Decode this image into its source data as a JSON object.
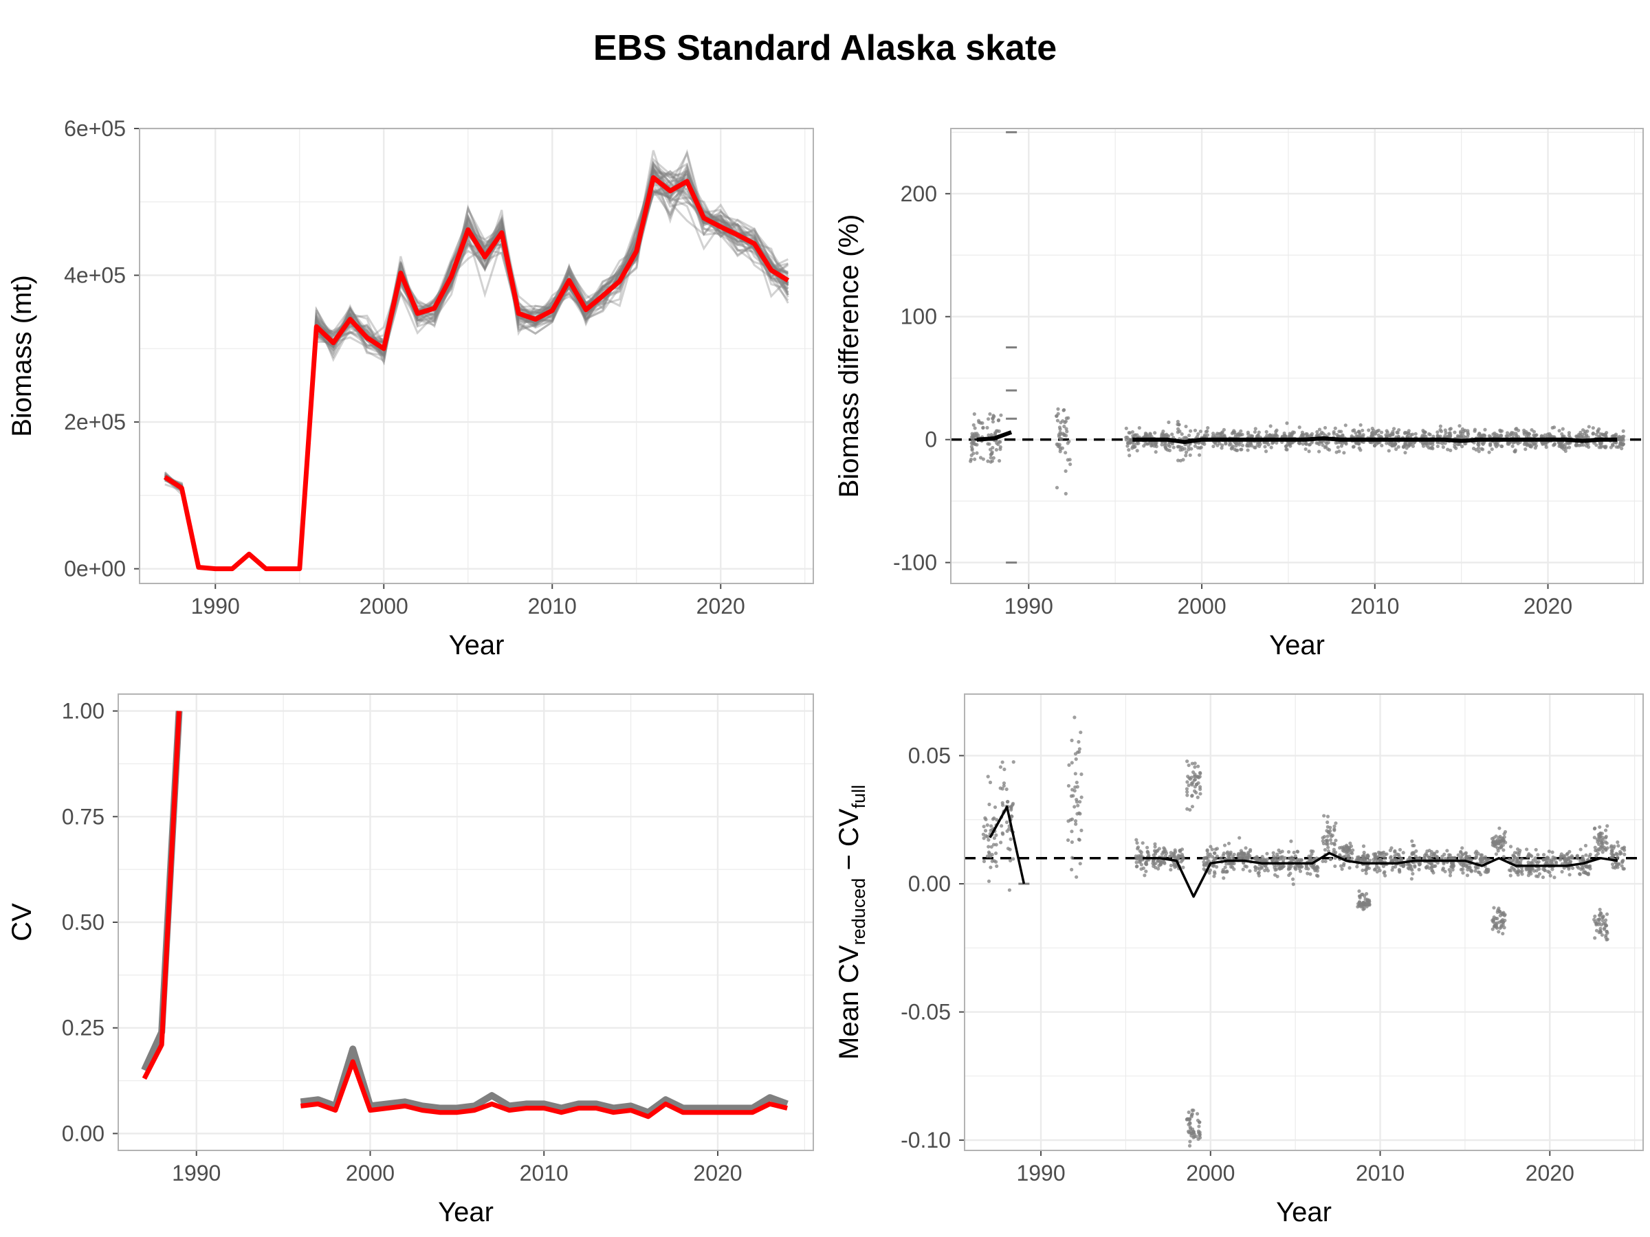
{
  "title": "EBS Standard Alaska skate",
  "colors": {
    "highlight": "#ff0000",
    "replicate": "#7f7f7f",
    "mean": "#000000",
    "grid": "#ebebeb",
    "panel_border": "#b3b3b3"
  },
  "chart_data": [
    {
      "type": "line",
      "xlabel": "Year",
      "ylabel": "Biomass (mt)",
      "xlim": [
        1985.5,
        2025.5
      ],
      "ylim": [
        -20000,
        600000
      ],
      "xticks": [
        1990,
        2000,
        2010,
        2020
      ],
      "xtick_labels": [
        "1990",
        "2000",
        "2010",
        "2020"
      ],
      "yticks": [
        0,
        200000,
        400000,
        600000
      ],
      "ytick_labels": [
        "0e+00",
        "2e+05",
        "4e+05",
        "6e+05"
      ],
      "grid": true,
      "series": [
        {
          "role": "full",
          "segments": [
            {
              "x": [
                1987,
                1988,
                1989,
                1990,
                1991,
                1992,
                1993,
                1994,
                1995,
                1996,
                1997,
                1998,
                1999,
                2000,
                2001,
                2002,
                2003,
                2004,
                2005,
                2006,
                2007,
                2008,
                2009,
                2010,
                2011,
                2012,
                2013,
                2014,
                2015,
                2016,
                2017,
                2018,
                2019,
                2020,
                2021,
                2022,
                2023,
                2024
              ],
              "y": [
                125000,
                110000,
                2000,
                0,
                0,
                20000,
                0,
                0,
                0,
                330000,
                308000,
                340000,
                315000,
                300000,
                403000,
                348000,
                355000,
                398000,
                462000,
                425000,
                458000,
                348000,
                340000,
                352000,
                393000,
                353000,
                372000,
                392000,
                433000,
                533000,
                515000,
                528000,
                478000,
                466000,
                455000,
                443000,
                407000,
                393000
              ]
            }
          ]
        }
      ],
      "replicate_band": {
        "x_range": [
          1987,
          2024
        ],
        "y_spread_fraction": 0.06
      }
    },
    {
      "type": "scatter",
      "xlabel": "Year",
      "ylabel": "Biomass difference (%)",
      "xlim": [
        1985.5,
        2025.5
      ],
      "ylim": [
        -117,
        253
      ],
      "xticks": [
        1990,
        2000,
        2010,
        2020
      ],
      "xtick_labels": [
        "1990",
        "2000",
        "2010",
        "2020"
      ],
      "yticks": [
        -100,
        0,
        100,
        200
      ],
      "ytick_labels": [
        "-100",
        "0",
        "100",
        "200"
      ],
      "grid": true,
      "reference_line": 0,
      "point_groups": [
        {
          "x": 1987,
          "center": 0,
          "spread": 22
        },
        {
          "x": 1988,
          "center": 0,
          "spread": 30
        },
        {
          "x": 1992,
          "center": 0,
          "spread": 45
        },
        {
          "x": 1996,
          "center": 0,
          "spread": 10
        },
        {
          "x": 1997,
          "center": 0,
          "spread": 10
        },
        {
          "x": 1998,
          "center": 0,
          "spread": 10
        },
        {
          "x": 1999,
          "center": -2,
          "spread": 22
        },
        {
          "x": 2000,
          "center": 0,
          "spread": 10
        },
        {
          "x": 2001,
          "center": 0,
          "spread": 10
        },
        {
          "x": 2002,
          "center": 0,
          "spread": 10
        },
        {
          "x": 2003,
          "center": 0,
          "spread": 10
        },
        {
          "x": 2004,
          "center": 0,
          "spread": 10
        },
        {
          "x": 2005,
          "center": 0,
          "spread": 10
        },
        {
          "x": 2006,
          "center": 0,
          "spread": 10
        },
        {
          "x": 2007,
          "center": 0,
          "spread": 10
        },
        {
          "x": 2008,
          "center": 0,
          "spread": 10
        },
        {
          "x": 2009,
          "center": 0,
          "spread": 10
        },
        {
          "x": 2010,
          "center": 0,
          "spread": 10
        },
        {
          "x": 2011,
          "center": 0,
          "spread": 10
        },
        {
          "x": 2012,
          "center": 0,
          "spread": 10
        },
        {
          "x": 2013,
          "center": 0,
          "spread": 10
        },
        {
          "x": 2014,
          "center": 0,
          "spread": 10
        },
        {
          "x": 2015,
          "center": 0,
          "spread": 10
        },
        {
          "x": 2016,
          "center": 0,
          "spread": 10
        },
        {
          "x": 2017,
          "center": 0,
          "spread": 10
        },
        {
          "x": 2018,
          "center": 0,
          "spread": 10
        },
        {
          "x": 2019,
          "center": 0,
          "spread": 10
        },
        {
          "x": 2020,
          "center": 0,
          "spread": 10
        },
        {
          "x": 2021,
          "center": 0,
          "spread": 10
        },
        {
          "x": 2022,
          "center": 0,
          "spread": 10
        },
        {
          "x": 2023,
          "center": 0,
          "spread": 10
        },
        {
          "x": 2024,
          "center": 0,
          "spread": 10
        }
      ],
      "discrete_points": [
        {
          "x": 1989,
          "y": 250
        },
        {
          "x": 1989,
          "y": 75
        },
        {
          "x": 1989,
          "y": 40
        },
        {
          "x": 1989,
          "y": 17
        },
        {
          "x": 1989,
          "y": -100
        }
      ],
      "mean_segments": [
        {
          "x": [
            1987,
            1988,
            1989
          ],
          "y": [
            0,
            1,
            6
          ]
        },
        {
          "x": [
            1996,
            1997,
            1998,
            1999,
            2000,
            2001,
            2002,
            2003,
            2004,
            2005,
            2006,
            2007,
            2008,
            2009,
            2010,
            2011,
            2012,
            2013,
            2014,
            2015,
            2016,
            2017,
            2018,
            2019,
            2020,
            2021,
            2022,
            2023,
            2024
          ],
          "y": [
            0,
            0,
            0,
            -2,
            0,
            0,
            0,
            0,
            0,
            0,
            0,
            1,
            0,
            0,
            0,
            0,
            0,
            0,
            0,
            -1,
            0,
            0,
            0,
            0,
            0,
            0,
            -1,
            0,
            0
          ]
        }
      ]
    },
    {
      "type": "line",
      "xlabel": "Year",
      "ylabel": "CV",
      "xlim": [
        1985.5,
        2025.5
      ],
      "ylim": [
        -0.04,
        1.04
      ],
      "xticks": [
        1990,
        2000,
        2010,
        2020
      ],
      "xtick_labels": [
        "1990",
        "2000",
        "2010",
        "2020"
      ],
      "yticks": [
        0,
        0.25,
        0.5,
        0.75,
        1.0
      ],
      "ytick_labels": [
        "0.00",
        "0.25",
        "0.50",
        "0.75",
        "1.00"
      ],
      "grid": true,
      "series": [
        {
          "role": "full",
          "segments": [
            {
              "x": [
                1987,
                1988,
                1989
              ],
              "y": [
                0.13,
                0.21,
                1.0
              ]
            },
            {
              "x": [
                1996,
                1997,
                1998,
                1999,
                2000,
                2001,
                2002,
                2003,
                2004,
                2005,
                2006,
                2007,
                2008,
                2009,
                2010,
                2011,
                2012,
                2013,
                2014,
                2015,
                2016,
                2017,
                2018,
                2019,
                2020,
                2021,
                2022,
                2023,
                2024
              ],
              "y": [
                0.065,
                0.07,
                0.055,
                0.17,
                0.055,
                0.06,
                0.065,
                0.055,
                0.05,
                0.05,
                0.055,
                0.07,
                0.055,
                0.06,
                0.06,
                0.05,
                0.06,
                0.06,
                0.05,
                0.055,
                0.04,
                0.07,
                0.05,
                0.05,
                0.05,
                0.05,
                0.05,
                0.07,
                0.06
              ]
            }
          ]
        },
        {
          "role": "reduced",
          "segments": [
            {
              "x": [
                1987,
                1988,
                1989
              ],
              "y": [
                0.15,
                0.24,
                1.0
              ]
            },
            {
              "x": [
                1996,
                1997,
                1998,
                1999,
                2000,
                2001,
                2002,
                2003,
                2004,
                2005,
                2006,
                2007,
                2008,
                2009,
                2010,
                2011,
                2012,
                2013,
                2014,
                2015,
                2016,
                2017,
                2018,
                2019,
                2020,
                2021,
                2022,
                2023,
                2024
              ],
              "y": [
                0.075,
                0.08,
                0.065,
                0.2,
                0.065,
                0.07,
                0.075,
                0.065,
                0.06,
                0.06,
                0.065,
                0.09,
                0.065,
                0.07,
                0.07,
                0.06,
                0.07,
                0.07,
                0.06,
                0.065,
                0.05,
                0.08,
                0.06,
                0.06,
                0.06,
                0.06,
                0.06,
                0.085,
                0.07
              ]
            }
          ]
        }
      ]
    },
    {
      "type": "scatter",
      "xlabel": "Year",
      "ylabel": "Mean CVreduced − CVfull",
      "ylabel_parts": {
        "pre": "Mean CV",
        "sub1": "reduced",
        "mid": " − CV",
        "sub2": "full"
      },
      "xlim": [
        1985.5,
        2025.5
      ],
      "ylim": [
        -0.104,
        0.074
      ],
      "xticks": [
        1990,
        2000,
        2010,
        2020
      ],
      "xtick_labels": [
        "1990",
        "2000",
        "2010",
        "2020"
      ],
      "yticks": [
        -0.1,
        -0.05,
        0,
        0.05
      ],
      "ytick_labels": [
        "-0.10",
        "-0.05",
        "0.00",
        "0.05"
      ],
      "grid": true,
      "reference_line": 0.01,
      "point_groups": [
        {
          "x": 1987,
          "center": 0.02,
          "spread": 0.022
        },
        {
          "x": 1988,
          "center": 0.03,
          "spread": 0.03
        },
        {
          "x": 1992,
          "center": 0.03,
          "spread": 0.04
        },
        {
          "x": 1996,
          "center": 0.01,
          "spread": 0.006
        },
        {
          "x": 1997,
          "center": 0.01,
          "spread": 0.006
        },
        {
          "x": 1998,
          "center": 0.01,
          "spread": 0.006
        },
        {
          "x": 1999,
          "center": 0.038,
          "spread": 0.012
        },
        {
          "x": 1999,
          "center": -0.095,
          "spread": 0.008
        },
        {
          "x": 2000,
          "center": 0.009,
          "spread": 0.006
        },
        {
          "x": 2001,
          "center": 0.009,
          "spread": 0.006
        },
        {
          "x": 2002,
          "center": 0.01,
          "spread": 0.006
        },
        {
          "x": 2003,
          "center": 0.008,
          "spread": 0.006
        },
        {
          "x": 2004,
          "center": 0.008,
          "spread": 0.006
        },
        {
          "x": 2005,
          "center": 0.008,
          "spread": 0.006
        },
        {
          "x": 2006,
          "center": 0.008,
          "spread": 0.006
        },
        {
          "x": 2007,
          "center": 0.015,
          "spread": 0.012
        },
        {
          "x": 2008,
          "center": 0.011,
          "spread": 0.006
        },
        {
          "x": 2009,
          "center": 0.009,
          "spread": 0.006
        },
        {
          "x": 2009,
          "center": -0.007,
          "spread": 0.004
        },
        {
          "x": 2010,
          "center": 0.009,
          "spread": 0.006
        },
        {
          "x": 2011,
          "center": 0.009,
          "spread": 0.006
        },
        {
          "x": 2012,
          "center": 0.009,
          "spread": 0.006
        },
        {
          "x": 2013,
          "center": 0.009,
          "spread": 0.006
        },
        {
          "x": 2014,
          "center": 0.009,
          "spread": 0.006
        },
        {
          "x": 2015,
          "center": 0.009,
          "spread": 0.006
        },
        {
          "x": 2016,
          "center": 0.008,
          "spread": 0.006
        },
        {
          "x": 2017,
          "center": 0.016,
          "spread": 0.006
        },
        {
          "x": 2017,
          "center": -0.014,
          "spread": 0.005
        },
        {
          "x": 2018,
          "center": 0.008,
          "spread": 0.006
        },
        {
          "x": 2019,
          "center": 0.007,
          "spread": 0.006
        },
        {
          "x": 2020,
          "center": 0.008,
          "spread": 0.006
        },
        {
          "x": 2021,
          "center": 0.008,
          "spread": 0.006
        },
        {
          "x": 2022,
          "center": 0.008,
          "spread": 0.006
        },
        {
          "x": 2023,
          "center": 0.017,
          "spread": 0.006
        },
        {
          "x": 2023,
          "center": -0.015,
          "spread": 0.008
        },
        {
          "x": 2024,
          "center": 0.01,
          "spread": 0.006
        }
      ],
      "discrete_points": [
        {
          "x": 1989,
          "y": 0.0
        }
      ],
      "mean_segments": [
        {
          "x": [
            1987,
            1988,
            1989
          ],
          "y": [
            0.018,
            0.03,
            0.0
          ]
        },
        {
          "x": [
            1996,
            1997,
            1998,
            1999,
            2000,
            2001,
            2002,
            2003,
            2004,
            2005,
            2006,
            2007,
            2008,
            2009,
            2010,
            2011,
            2012,
            2013,
            2014,
            2015,
            2016,
            2017,
            2018,
            2019,
            2020,
            2021,
            2022,
            2023,
            2024
          ],
          "y": [
            0.01,
            0.01,
            0.009,
            -0.005,
            0.008,
            0.009,
            0.009,
            0.008,
            0.008,
            0.008,
            0.008,
            0.012,
            0.009,
            0.008,
            0.008,
            0.008,
            0.009,
            0.009,
            0.009,
            0.009,
            0.007,
            0.01,
            0.007,
            0.007,
            0.007,
            0.007,
            0.008,
            0.01,
            0.009
          ]
        }
      ]
    }
  ]
}
